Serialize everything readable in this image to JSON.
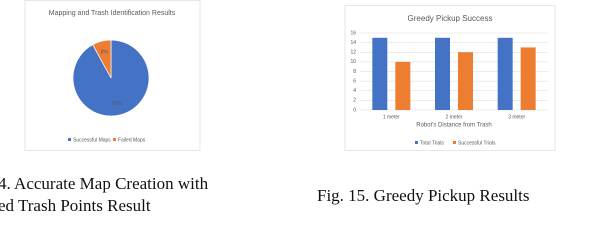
{
  "chart_data": [
    {
      "type": "pie",
      "title": "Mapping and Trash Identification Results",
      "categories": [
        "Successful Maps",
        "Failed Maps"
      ],
      "values": [
        92,
        8
      ],
      "value_labels": [
        "92%",
        "8%"
      ],
      "colors": [
        "#4472c4",
        "#ed7d31"
      ],
      "legend": "bottom"
    },
    {
      "type": "bar",
      "title": "Greedy Pickup Success",
      "x_label": "Robot's Distance from Trash",
      "categories": [
        "1 meter",
        "2 meter",
        "3 meter"
      ],
      "series": [
        {
          "name": "Total Trials",
          "color": "#4472c4",
          "values": [
            15,
            15,
            15
          ]
        },
        {
          "name": "Successful Trials",
          "color": "#ed7d31",
          "values": [
            10,
            12,
            13
          ]
        }
      ],
      "ylim": [
        0,
        16
      ],
      "yticks": [
        0,
        2,
        4,
        6,
        8,
        10,
        12,
        14,
        16
      ],
      "grid": true,
      "legend": "bottom"
    }
  ],
  "captions": [
    "4.  Accurate Map Creation with",
    "ed Trash Points Result",
    "Fig. 15.  Greedy Pickup Results"
  ]
}
